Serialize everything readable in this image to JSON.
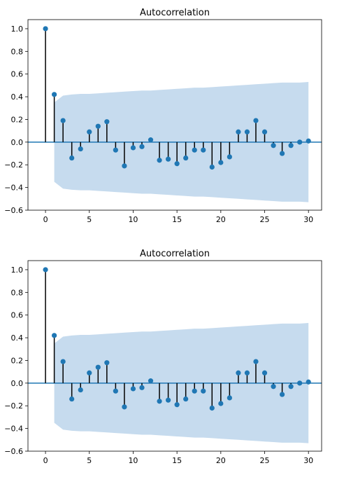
{
  "chart_data": [
    {
      "type": "stem",
      "title": "Autocorrelation",
      "xlabel": "",
      "ylabel": "",
      "xlim": [
        -2,
        31.5
      ],
      "ylim": [
        -0.6,
        1.08
      ],
      "xticks": [
        "0",
        "5",
        "10",
        "15",
        "20",
        "25",
        "30"
      ],
      "yticks": [
        "−0.6",
        "−0.4",
        "−0.2",
        "0.0",
        "0.2",
        "0.4",
        "0.6",
        "0.8",
        "1.0"
      ],
      "grid": false,
      "colors": {
        "marker": "#1f77b4",
        "stem": "#000000",
        "band": "#c6dbee",
        "baseline": "#1f77b4"
      },
      "series": [
        {
          "x": [
            0,
            1,
            2,
            3,
            4,
            5,
            6,
            7,
            8,
            9,
            10,
            11,
            12,
            13,
            14,
            15,
            16,
            17,
            18,
            19,
            20,
            21,
            22,
            23,
            24,
            25,
            26,
            27,
            28,
            29,
            30
          ],
          "values": [
            1.0,
            0.42,
            0.19,
            -0.14,
            -0.06,
            0.09,
            0.14,
            0.18,
            -0.07,
            -0.21,
            -0.05,
            -0.04,
            0.02,
            -0.16,
            -0.15,
            -0.19,
            -0.14,
            -0.07,
            -0.07,
            -0.22,
            -0.18,
            -0.13,
            0.09,
            0.09,
            0.19,
            0.09,
            -0.03,
            -0.1,
            -0.03,
            0.0,
            0.01
          ]
        }
      ],
      "confidence_band": {
        "x": [
          1,
          2,
          3,
          4,
          5,
          6,
          7,
          8,
          9,
          10,
          11,
          12,
          13,
          14,
          15,
          16,
          17,
          18,
          19,
          20,
          21,
          22,
          23,
          24,
          25,
          26,
          27,
          28,
          29,
          30
        ],
        "upper": [
          0.35,
          0.41,
          0.42,
          0.425,
          0.425,
          0.43,
          0.435,
          0.44,
          0.445,
          0.45,
          0.455,
          0.455,
          0.46,
          0.465,
          0.47,
          0.475,
          0.48,
          0.48,
          0.485,
          0.49,
          0.495,
          0.5,
          0.505,
          0.51,
          0.515,
          0.52,
          0.525,
          0.525,
          0.525,
          0.53
        ]
      }
    },
    {
      "type": "stem",
      "title": "Autocorrelation",
      "xlabel": "",
      "ylabel": "",
      "xlim": [
        -2,
        31.5
      ],
      "ylim": [
        -0.6,
        1.08
      ],
      "xticks": [
        "0",
        "5",
        "10",
        "15",
        "20",
        "25",
        "30"
      ],
      "yticks": [
        "−0.6",
        "−0.4",
        "−0.2",
        "0.0",
        "0.2",
        "0.4",
        "0.6",
        "0.8",
        "1.0"
      ],
      "grid": false,
      "colors": {
        "marker": "#1f77b4",
        "stem": "#000000",
        "band": "#c6dbee",
        "baseline": "#1f77b4"
      },
      "series": [
        {
          "x": [
            0,
            1,
            2,
            3,
            4,
            5,
            6,
            7,
            8,
            9,
            10,
            11,
            12,
            13,
            14,
            15,
            16,
            17,
            18,
            19,
            20,
            21,
            22,
            23,
            24,
            25,
            26,
            27,
            28,
            29,
            30
          ],
          "values": [
            1.0,
            0.42,
            0.19,
            -0.14,
            -0.06,
            0.09,
            0.14,
            0.18,
            -0.07,
            -0.21,
            -0.05,
            -0.04,
            0.02,
            -0.16,
            -0.15,
            -0.19,
            -0.14,
            -0.07,
            -0.07,
            -0.22,
            -0.18,
            -0.13,
            0.09,
            0.09,
            0.19,
            0.09,
            -0.03,
            -0.1,
            -0.03,
            0.0,
            0.01
          ]
        }
      ],
      "confidence_band": {
        "x": [
          1,
          2,
          3,
          4,
          5,
          6,
          7,
          8,
          9,
          10,
          11,
          12,
          13,
          14,
          15,
          16,
          17,
          18,
          19,
          20,
          21,
          22,
          23,
          24,
          25,
          26,
          27,
          28,
          29,
          30
        ],
        "upper": [
          0.35,
          0.41,
          0.42,
          0.425,
          0.425,
          0.43,
          0.435,
          0.44,
          0.445,
          0.45,
          0.455,
          0.455,
          0.46,
          0.465,
          0.47,
          0.475,
          0.48,
          0.48,
          0.485,
          0.49,
          0.495,
          0.5,
          0.505,
          0.51,
          0.515,
          0.52,
          0.525,
          0.525,
          0.525,
          0.53
        ]
      }
    }
  ]
}
